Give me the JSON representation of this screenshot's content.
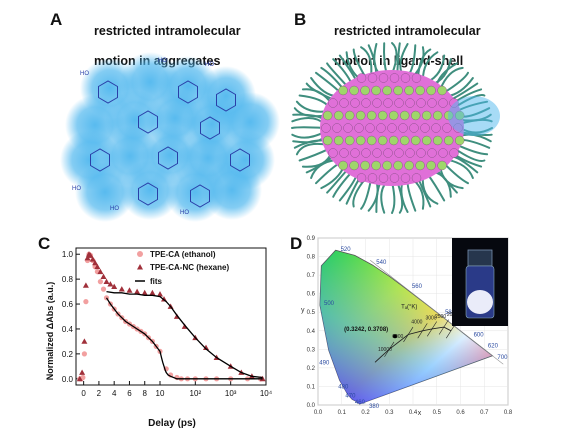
{
  "panels": {
    "A": {
      "letter": "A",
      "caption_line1": "restricted intramolecular",
      "caption_line2": "motion in aggregates",
      "glow_color": "#4fb7ee",
      "structure_color": "#2a3fa8",
      "group_label": "HO"
    },
    "B": {
      "letter": "B",
      "caption_line1": "restricted intramolecular",
      "caption_line2": "motion in ligand-shell",
      "ligand_color": "#3f8e7e",
      "core_colors": [
        "#e070d8",
        "#9fd66a"
      ]
    },
    "C": {
      "letter": "C"
    },
    "D": {
      "letter": "D",
      "temp_label": "Tₐ(°K)",
      "coord_label": "(0.3242, 0.3708)",
      "wavelength_labels": [
        "520",
        "540",
        "560",
        "580",
        "500",
        "600",
        "620",
        "490",
        "700",
        "480",
        "470",
        "460",
        "380"
      ],
      "temperature_labels": [
        "10000",
        "6000",
        "4000",
        "3000",
        "2500",
        "2000",
        "1500"
      ],
      "x_ticks": [
        "0.0",
        "0.1",
        "0.2",
        "0.3",
        "0.4",
        "0.5",
        "0.6",
        "0.7",
        "0.8"
      ],
      "y_ticks": [
        "0.0",
        "0.1",
        "0.2",
        "0.3",
        "0.4",
        "0.5",
        "0.6",
        "0.7",
        "0.8",
        "0.9"
      ],
      "x_axis_letter": "x",
      "y_axis_letter": "y"
    }
  },
  "chart_data": {
    "type": "scatter",
    "xlabel": "Delay (ps)",
    "ylabel": "Normalized ΔAbs (a.u.)",
    "xlim": [
      -1,
      10000
    ],
    "ylim": [
      -0.05,
      1.05
    ],
    "x_scale": "linear 0–10, logarithmic 10–10^4",
    "x_ticks": [
      "0",
      "2",
      "4",
      "6",
      "8",
      "10",
      "10²",
      "10³",
      "10⁴"
    ],
    "y_ticks": [
      "0.0",
      "0.2",
      "0.4",
      "0.6",
      "0.8",
      "1.0"
    ],
    "legend_position": "top-right",
    "series": [
      {
        "name": "TPE-CA (ethanol)",
        "color": "#f2a0a0",
        "marker": "circle",
        "x": [
          -0.5,
          -0.3,
          -0.1,
          0.1,
          0.3,
          0.5,
          0.7,
          0.9,
          1.2,
          1.5,
          1.8,
          2.2,
          2.6,
          3,
          3.5,
          4,
          4.5,
          5,
          5.5,
          6,
          6.5,
          7,
          7.5,
          8,
          8.5,
          9,
          9.5,
          10,
          15,
          20,
          30,
          40,
          60,
          100,
          200,
          400,
          1000,
          3000,
          7000
        ],
        "y": [
          0.0,
          0.0,
          0.01,
          0.2,
          0.62,
          0.95,
          1.0,
          0.99,
          0.95,
          0.9,
          0.86,
          0.78,
          0.72,
          0.65,
          0.6,
          0.56,
          0.52,
          0.49,
          0.46,
          0.44,
          0.42,
          0.4,
          0.38,
          0.36,
          0.33,
          0.3,
          0.26,
          0.22,
          0.08,
          0.03,
          0.01,
          0.0,
          0.0,
          0.0,
          0.0,
          0.0,
          0.0,
          0.0,
          0.0
        ]
      },
      {
        "name": "TPE-CA-NC (hexane)",
        "color": "#a0303a",
        "marker": "triangle",
        "x": [
          -0.5,
          -0.2,
          0.1,
          0.3,
          0.5,
          0.7,
          0.9,
          1.2,
          1.5,
          1.8,
          2.2,
          2.6,
          3,
          3.5,
          4,
          5,
          6,
          7,
          8,
          9,
          10,
          13,
          20,
          30,
          50,
          100,
          200,
          400,
          1000,
          2000,
          4000,
          8000
        ],
        "y": [
          0.0,
          0.05,
          0.3,
          0.75,
          0.97,
          1.0,
          0.99,
          0.96,
          0.93,
          0.9,
          0.86,
          0.82,
          0.78,
          0.76,
          0.74,
          0.72,
          0.71,
          0.7,
          0.69,
          0.69,
          0.68,
          0.64,
          0.58,
          0.5,
          0.42,
          0.33,
          0.25,
          0.17,
          0.1,
          0.05,
          0.02,
          0.0
        ]
      },
      {
        "name": "fits",
        "color": "#000000",
        "marker": "line",
        "x": [
          3,
          4,
          5,
          6,
          7,
          8,
          9,
          10,
          15,
          20,
          30,
          50,
          100,
          200,
          400,
          1000,
          2000,
          4000,
          8000
        ],
        "y": [
          0.7,
          0.69,
          0.69,
          0.68,
          0.68,
          0.67,
          0.67,
          0.66,
          0.62,
          0.58,
          0.51,
          0.43,
          0.33,
          0.24,
          0.17,
          0.1,
          0.05,
          0.02,
          0.01
        ]
      },
      {
        "name": "",
        "color": "#000000",
        "marker": "line",
        "x": [
          3,
          3.5,
          4,
          4.5,
          5,
          5.5,
          6,
          6.5,
          7,
          7.5,
          8,
          8.5,
          9,
          9.5,
          10,
          11,
          12,
          13,
          14,
          15,
          17,
          20,
          30,
          100,
          8000
        ],
        "y": [
          0.65,
          0.6,
          0.56,
          0.52,
          0.49,
          0.46,
          0.44,
          0.42,
          0.4,
          0.38,
          0.36,
          0.33,
          0.3,
          0.26,
          0.22,
          0.17,
          0.13,
          0.1,
          0.07,
          0.05,
          0.03,
          0.02,
          0.0,
          0.0,
          0.0
        ]
      }
    ]
  }
}
